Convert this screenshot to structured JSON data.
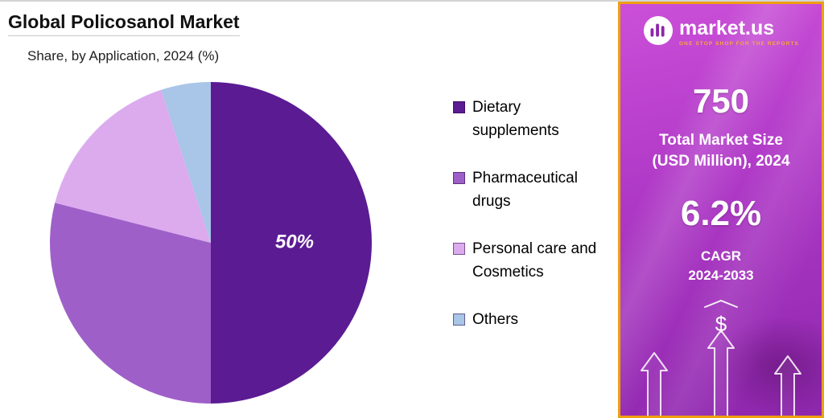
{
  "header": {
    "title": "Global Policosanol Market",
    "subtitle": "Share, by Application, 2024 (%)"
  },
  "chart_data": {
    "type": "pie",
    "title": "Global Policosanol Market",
    "subtitle": "Share, by Application, 2024 (%)",
    "labels": [
      "Dietary supplements",
      "Pharmaceutical drugs",
      "Personal care and Cosmetics",
      "Others"
    ],
    "values": [
      50,
      29,
      16,
      5
    ],
    "value_labels": [
      "50%",
      "",
      "",
      ""
    ],
    "colors": [
      "#5b1b93",
      "#9e60c8",
      "#dcabee",
      "#a9c5e8"
    ],
    "units": "%",
    "legend_position": "right",
    "start_angle_deg": -90,
    "direction": "clockwise"
  },
  "sidebar": {
    "brand_name": "market.us",
    "brand_tagline": "ONE STOP SHOP FOR THE REPORTS",
    "market_size_value": "750",
    "market_size_label": [
      "Total Market Size",
      "(USD Million), 2024"
    ],
    "cagr_value": "6.2%",
    "cagr_label": [
      "CAGR",
      "2024-2033"
    ],
    "dollar_symbol": "$",
    "accent_color": "#ef9f10",
    "gradient_top": "#cb4fd8",
    "gradient_bottom": "#8e27ad"
  }
}
